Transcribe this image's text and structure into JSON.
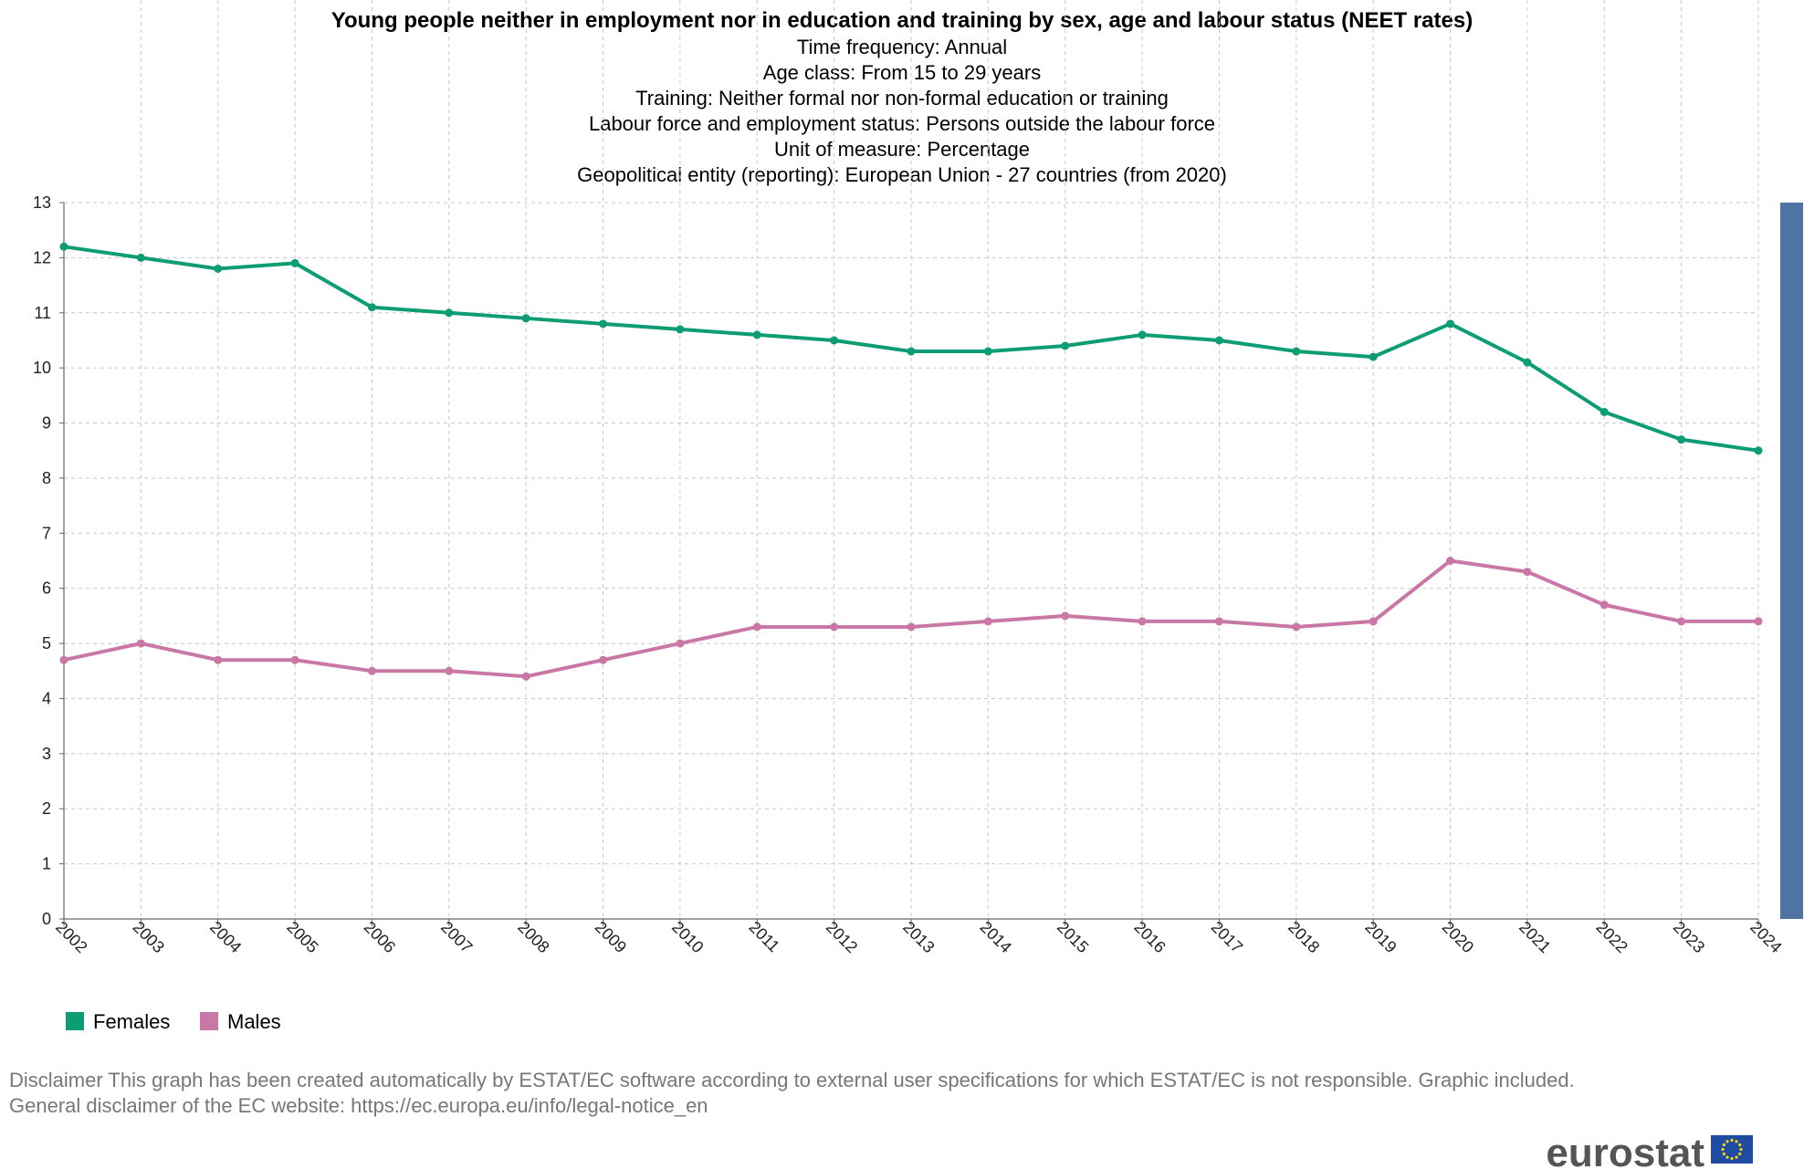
{
  "chart_data": {
    "type": "line",
    "title": "Young people neither in employment nor in education and training by sex, age and labour status (NEET rates)",
    "subtitle_lines": [
      "Time frequency:  Annual",
      "Age class:  From 15 to 29 years",
      "Training:  Neither formal nor non-formal education or training",
      "Labour force and employment status:  Persons outside the labour force",
      "Unit of measure:  Percentage",
      "Geopolitical entity (reporting):  European Union - 27 countries (from 2020)"
    ],
    "x": [
      "2002",
      "2003",
      "2004",
      "2005",
      "2006",
      "2007",
      "2008",
      "2009",
      "2010",
      "2011",
      "2012",
      "2013",
      "2014",
      "2015",
      "2016",
      "2017",
      "2018",
      "2019",
      "2020",
      "2021",
      "2022",
      "2023",
      "2024"
    ],
    "ylim": [
      0,
      13
    ],
    "yticks": [
      0,
      1,
      2,
      3,
      4,
      5,
      6,
      7,
      8,
      9,
      10,
      11,
      12,
      13
    ],
    "grid": true,
    "legend_position": "bottom-left",
    "series": [
      {
        "name": "Females",
        "color": "#0d9c73",
        "values": [
          12.2,
          12.0,
          11.8,
          11.9,
          11.1,
          11.0,
          10.9,
          10.8,
          10.7,
          10.6,
          10.5,
          10.3,
          10.3,
          10.4,
          10.6,
          10.5,
          10.3,
          10.2,
          10.8,
          10.1,
          9.2,
          8.7,
          8.5
        ]
      },
      {
        "name": "Males",
        "color": "#c977a6",
        "values": [
          4.7,
          5.0,
          4.7,
          4.7,
          4.5,
          4.5,
          4.4,
          4.7,
          5.0,
          5.3,
          5.3,
          5.3,
          5.4,
          5.5,
          5.4,
          5.4,
          5.3,
          5.4,
          6.5,
          6.3,
          5.7,
          5.4,
          5.4
        ]
      }
    ]
  },
  "footer": {
    "disclaimer_line1": "Disclaimer This graph has been created automatically by ESTAT/EC software according to external user specifications for which ESTAT/EC is not responsible. Graphic included.",
    "disclaimer_line2": "General disclaimer of the EC website: https://ec.europa.eu/info/legal-notice_en"
  },
  "brand": {
    "logo_text": "eurostat",
    "flag_color": "#1f4ba0",
    "star_color": "#f7d117"
  },
  "scrollbar": {
    "color": "#4f73a3"
  }
}
